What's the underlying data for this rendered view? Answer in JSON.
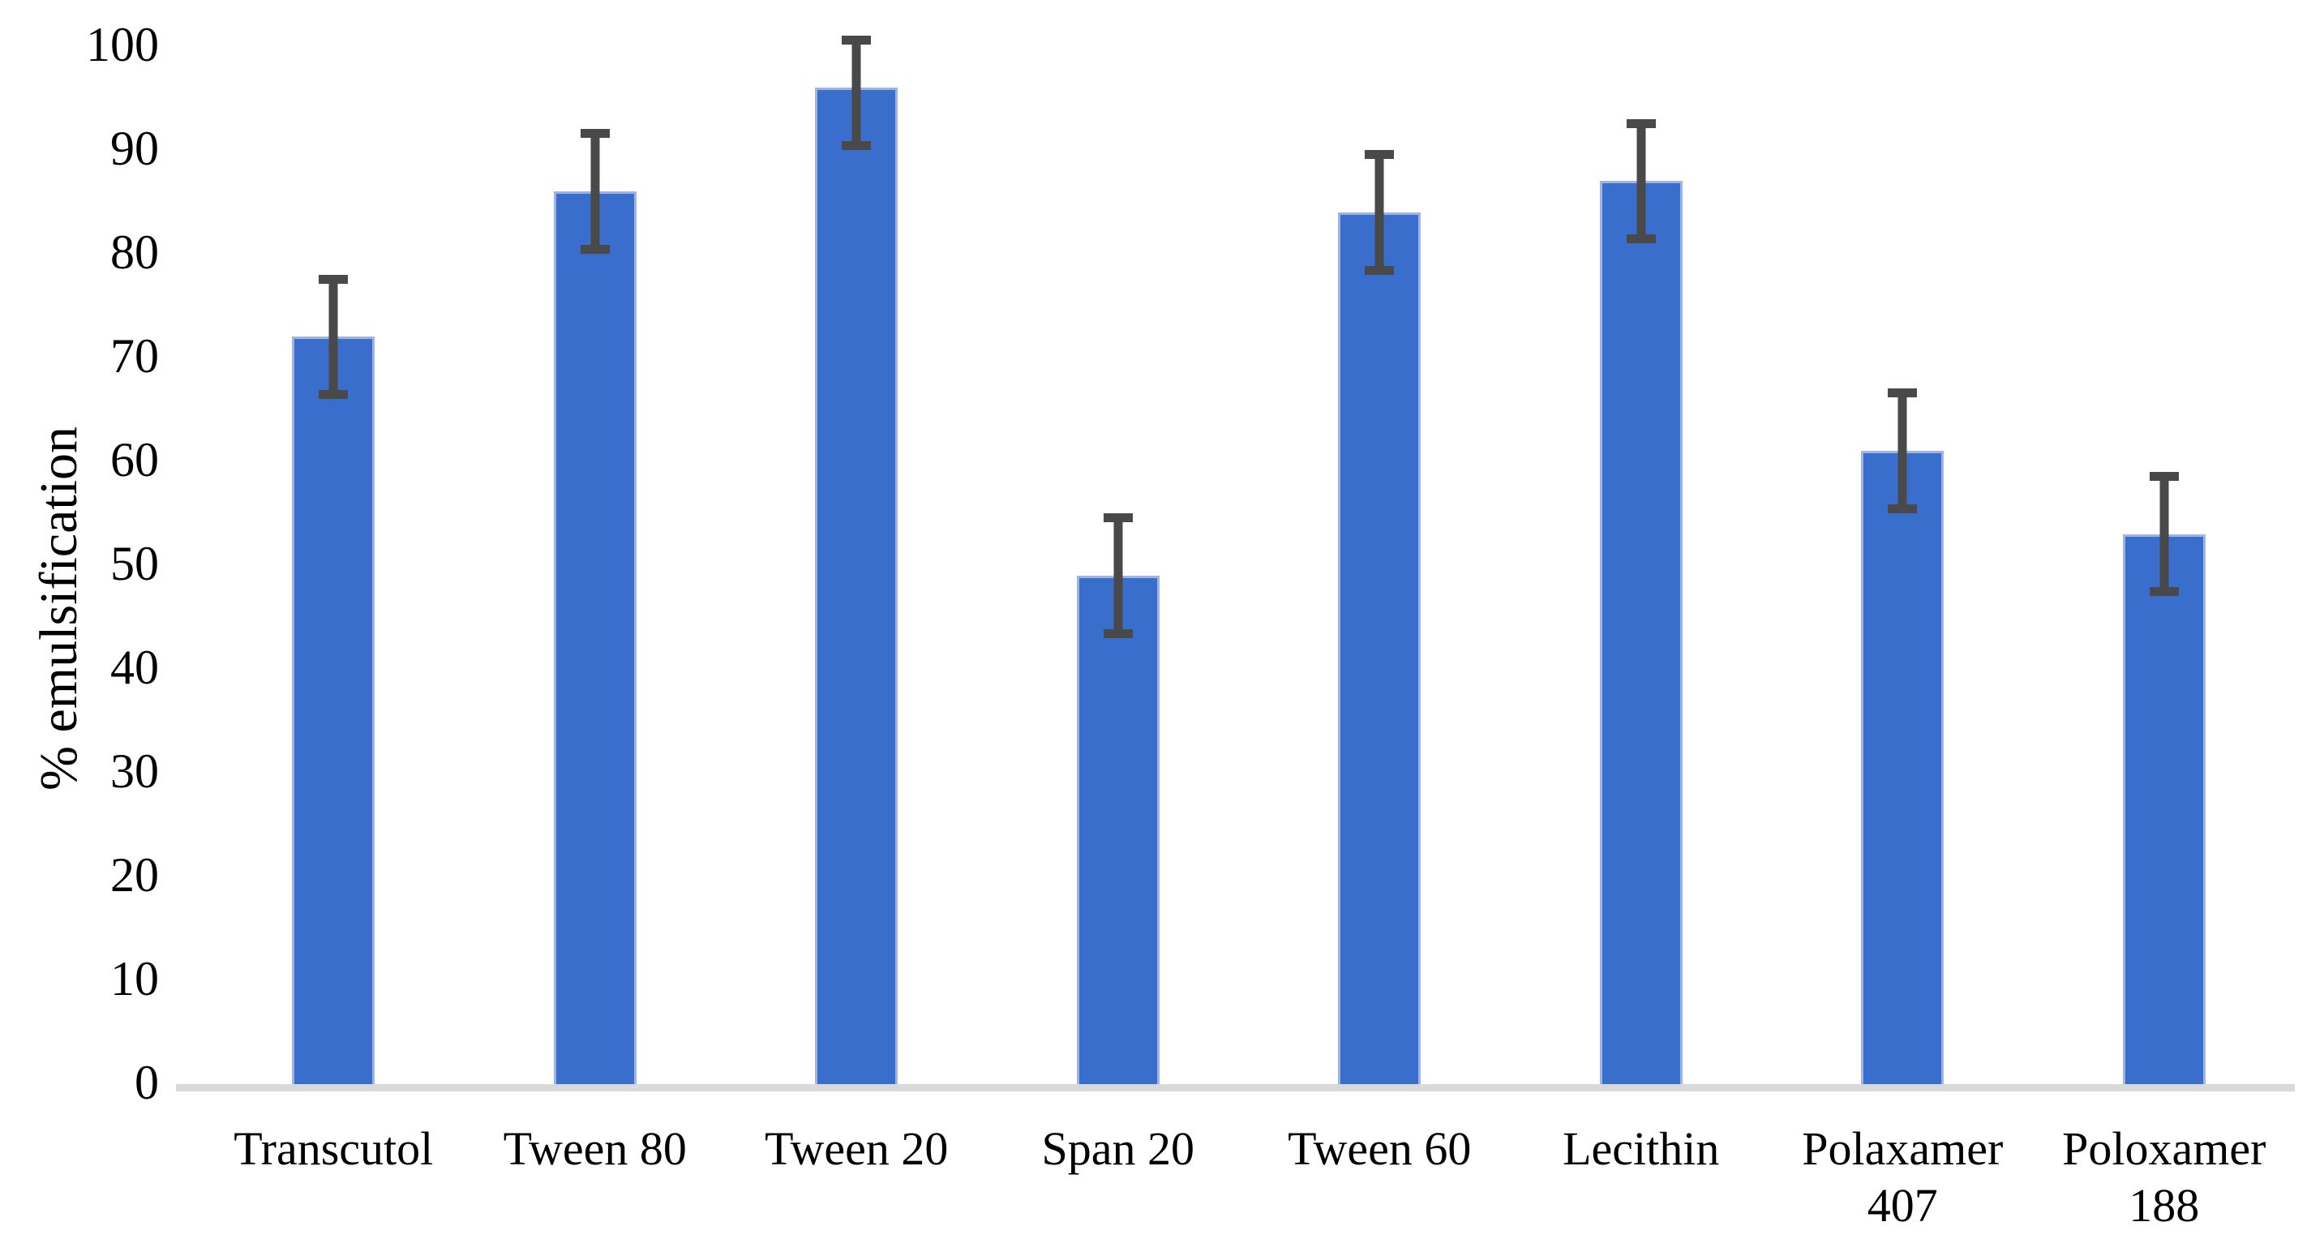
{
  "chart_data": {
    "type": "bar",
    "title": "",
    "xlabel": "",
    "ylabel": "% emulsification",
    "ylim": [
      0,
      100
    ],
    "yticks": [
      0,
      10,
      20,
      30,
      40,
      50,
      60,
      70,
      80,
      90,
      100
    ],
    "grid": false,
    "legend": false,
    "categories": [
      "Transcutol",
      "Tween 80",
      "Tween 20",
      "Span 20",
      "Tween 60",
      "Lecithin",
      "Polaxamer\n407",
      "Poloxamer\n188"
    ],
    "values": [
      72,
      86,
      96,
      49,
      84,
      87,
      61,
      53
    ],
    "error_up": [
      6,
      6,
      5,
      6,
      6,
      6,
      6,
      6
    ],
    "error_down": [
      6,
      6,
      6,
      6,
      6,
      6,
      6,
      6
    ],
    "colors": {
      "bar": "#3a6ecd",
      "bar_edge": "#9db4e4",
      "error_bar": "#494949",
      "axis_line": "#d9d9d9",
      "text": "#000000"
    }
  }
}
